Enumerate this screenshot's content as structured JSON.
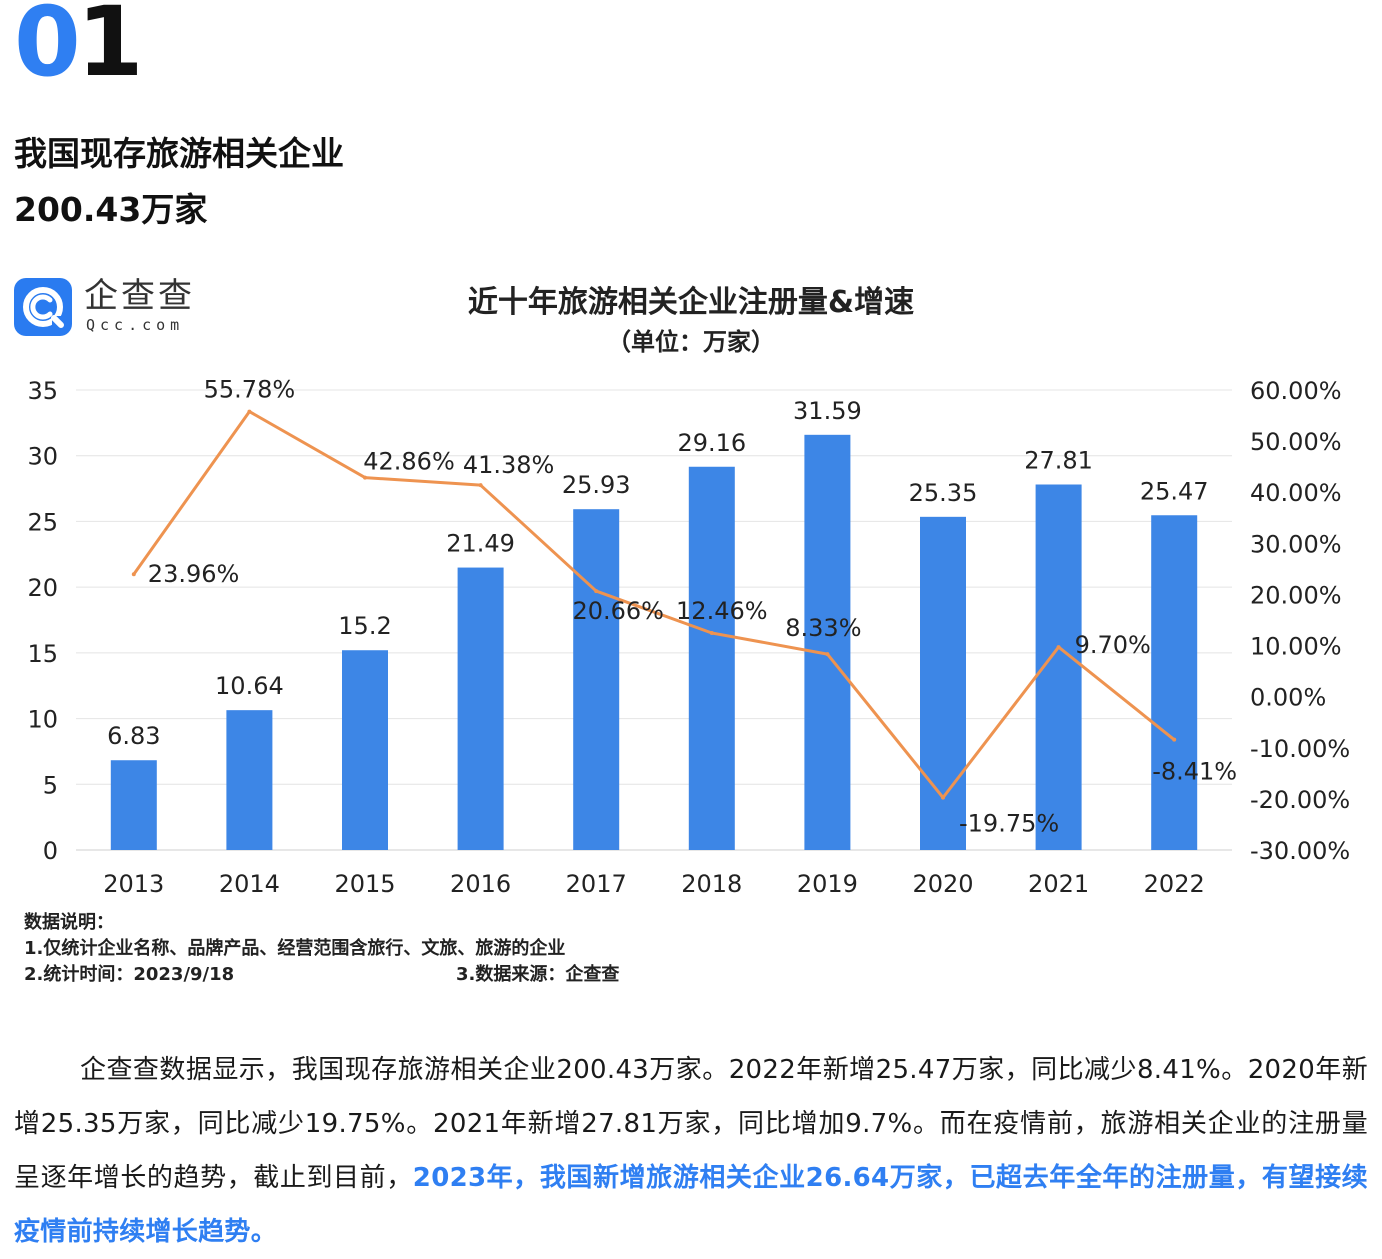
{
  "section": {
    "number_part1": "0",
    "number_part2": "1"
  },
  "headline": {
    "line1": "我国现存旅游相关企业",
    "line2": "200.43万家"
  },
  "logo": {
    "name": "企查查",
    "sub": "Qcc.com"
  },
  "chart_data": {
    "type": "bar",
    "title": "近十年旅游相关企业注册量&增速",
    "subtitle": "（单位：万家）",
    "categories": [
      "2013",
      "2014",
      "2015",
      "2016",
      "2017",
      "2018",
      "2019",
      "2020",
      "2021",
      "2022"
    ],
    "series": [
      {
        "type": "bar",
        "values": [
          6.83,
          10.64,
          15.2,
          21.49,
          25.93,
          29.16,
          31.59,
          25.35,
          27.81,
          25.47
        ],
        "labels": [
          "6.83",
          "10.64",
          "15.2",
          "21.49",
          "25.93",
          "29.16",
          "31.59",
          "25.35",
          "27.81",
          "25.47"
        ]
      },
      {
        "type": "line",
        "axis": "right",
        "values": [
          23.96,
          55.78,
          42.86,
          41.38,
          20.66,
          12.46,
          8.33,
          -19.75,
          9.7,
          -8.41
        ],
        "labels": [
          "23.96%",
          "55.78%",
          "42.86%",
          "41.38%",
          "20.66%",
          "12.46%",
          "8.33%",
          "-19.75%",
          "9.70%",
          "-8.41%"
        ]
      }
    ],
    "ylim": [
      0,
      35
    ],
    "y_ticks": [
      "0",
      "5",
      "10",
      "15",
      "20",
      "25",
      "30",
      "35"
    ],
    "y2lim": [
      -30,
      60
    ],
    "y2_ticks": [
      "-30.00%",
      "-20.00%",
      "-10.00%",
      "0.00%",
      "10.00%",
      "20.00%",
      "30.00%",
      "40.00%",
      "50.00%",
      "60.00%"
    ],
    "grid": true,
    "colors": {
      "bar": "#3d86e6",
      "line": "#ee9350"
    }
  },
  "notes": {
    "heading": "数据说明：",
    "item1": "1.仅统计企业名称、品牌产品、经营范围含旅行、文旅、旅游的企业",
    "item2": "2.统计时间：2023/9/18",
    "item3": "3.数据来源：企查查"
  },
  "paragraph": {
    "normal": "企查查数据显示，我国现存旅游相关企业200.43万家。2022年新增25.47万家，同比减少8.41%。2020年新增25.35万家，同比减少19.75%。2021年新增27.81万家，同比增加9.7%。而在疫情前，旅游相关企业的注册量呈逐年增长的趋势，截止到目前，",
    "highlight": "2023年，我国新增旅游相关企业26.64万家，已超去年全年的注册量，有望接续疫情前持续增长趋势。"
  },
  "colors": {
    "accent": "#2f7ff2"
  }
}
